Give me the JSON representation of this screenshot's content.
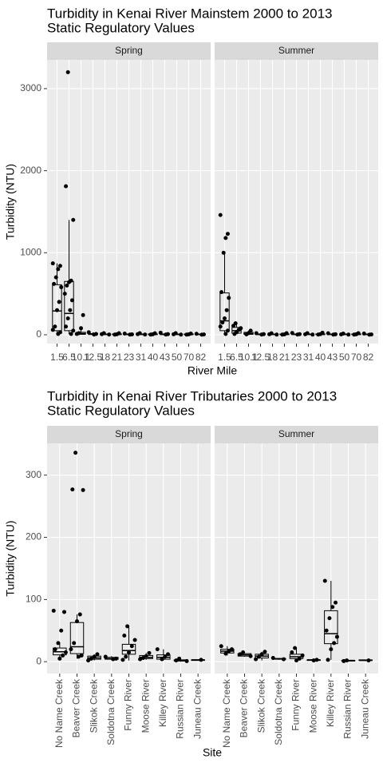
{
  "chart_data": [
    {
      "type": "box",
      "title": "Turbidity in Kenai River Mainstem  2000 to 2013",
      "subtitle": "Static Regulatory Values",
      "xlabel": "River Mile",
      "ylabel": "Turbidity (NTU)",
      "categories": [
        "1.5",
        "6.5",
        "10.1",
        "12.5",
        "18",
        "21",
        "23",
        "31",
        "40",
        "43",
        "50",
        "70",
        "82"
      ],
      "ylim": [
        -107,
        3350
      ],
      "yticks": [
        0,
        1000,
        2000,
        3000
      ],
      "grid": true,
      "facets": [
        {
          "name": "Spring",
          "boxes": [
            {
              "min": 5,
              "q1": 50,
              "median": 290,
              "q3": 610,
              "max": 870,
              "points": [
                870,
                840,
                800,
                700,
                620,
                580,
                400,
                300,
                100,
                60,
                30,
                10
              ]
            },
            {
              "min": 5,
              "q1": 50,
              "median": 260,
              "q3": 650,
              "max": 1400,
              "points": [
                3200,
                1810,
                1400,
                660,
                640,
                600,
                500,
                420,
                300,
                200,
                100,
                50,
                10
              ]
            },
            {
              "min": 2,
              "q1": 5,
              "median": 15,
              "q3": 30,
              "max": 80,
              "points": [
                240,
                80,
                20,
                10
              ]
            },
            {
              "min": 0,
              "q1": 3,
              "median": 8,
              "q3": 15,
              "max": 30,
              "points": [
                30,
                10,
                3
              ]
            },
            {
              "min": 0,
              "q1": 2,
              "median": 5,
              "q3": 10,
              "max": 20,
              "points": [
                20,
                8,
                3
              ]
            },
            {
              "min": 0,
              "q1": 2,
              "median": 5,
              "q3": 10,
              "max": 20,
              "points": [
                18,
                6,
                2
              ]
            },
            {
              "min": 0,
              "q1": 2,
              "median": 5,
              "q3": 10,
              "max": 20,
              "points": [
                15,
                5,
                2
              ]
            },
            {
              "min": 0,
              "q1": 2,
              "median": 5,
              "q3": 10,
              "max": 20,
              "points": [
                20,
                8,
                3
              ]
            },
            {
              "min": 0,
              "q1": 2,
              "median": 5,
              "q3": 10,
              "max": 20,
              "points": [
                18,
                6,
                2
              ]
            },
            {
              "min": 0,
              "q1": 2,
              "median": 5,
              "q3": 10,
              "max": 20,
              "points": [
                25,
                8,
                3
              ]
            },
            {
              "min": 0,
              "q1": 2,
              "median": 5,
              "q3": 10,
              "max": 20,
              "points": [
                20,
                6,
                2
              ]
            },
            {
              "min": 0,
              "q1": 2,
              "median": 5,
              "q3": 10,
              "max": 20,
              "points": [
                15,
                5,
                2
              ]
            },
            {
              "min": 0,
              "q1": 2,
              "median": 5,
              "q3": 10,
              "max": 20,
              "points": [
                12,
                4,
                1
              ]
            }
          ]
        },
        {
          "name": "Summer",
          "boxes": [
            {
              "min": 10,
              "q1": 50,
              "median": 170,
              "q3": 510,
              "max": 1000,
              "points": [
                1460,
                1230,
                1180,
                1000,
                520,
                450,
                300,
                200,
                150,
                100,
                50,
                10
              ]
            },
            {
              "min": 10,
              "q1": 20,
              "median": 50,
              "q3": 90,
              "max": 140,
              "points": [
                140,
                110,
                80,
                60,
                30,
                10
              ]
            },
            {
              "min": 2,
              "q1": 5,
              "median": 15,
              "q3": 30,
              "max": 50,
              "points": [
                50,
                20,
                5
              ]
            },
            {
              "min": 0,
              "q1": 2,
              "median": 5,
              "q3": 10,
              "max": 20,
              "points": [
                20,
                8,
                3
              ]
            },
            {
              "min": 0,
              "q1": 2,
              "median": 5,
              "q3": 10,
              "max": 20,
              "points": [
                18,
                6,
                2
              ]
            },
            {
              "min": 0,
              "q1": 2,
              "median": 5,
              "q3": 10,
              "max": 20,
              "points": [
                20,
                5,
                2
              ]
            },
            {
              "min": 0,
              "q1": 2,
              "median": 5,
              "q3": 10,
              "max": 20,
              "points": [
                22,
                8,
                3
              ]
            },
            {
              "min": 0,
              "q1": 2,
              "median": 5,
              "q3": 10,
              "max": 20,
              "points": [
                20,
                6,
                2
              ]
            },
            {
              "min": 0,
              "q1": 2,
              "median": 5,
              "q3": 10,
              "max": 20,
              "points": [
                25,
                8,
                3
              ]
            },
            {
              "min": 0,
              "q1": 2,
              "median": 5,
              "q3": 10,
              "max": 20,
              "points": [
                18,
                6,
                2
              ]
            },
            {
              "min": 0,
              "q1": 2,
              "median": 5,
              "q3": 10,
              "max": 20,
              "points": [
                15,
                5,
                2
              ]
            },
            {
              "min": 0,
              "q1": 2,
              "median": 5,
              "q3": 10,
              "max": 20,
              "points": [
                20,
                6,
                2
              ]
            },
            {
              "min": 0,
              "q1": 2,
              "median": 5,
              "q3": 10,
              "max": 20,
              "points": [
                15,
                4,
                1
              ]
            }
          ]
        }
      ]
    },
    {
      "type": "box",
      "title": "Turbidity in Kenai River Tributaries  2000 to 2013",
      "subtitle": "Static Regulatory Values",
      "xlabel": "Site",
      "ylabel": "Turbidity (NTU)",
      "categories": [
        "No Name Creek",
        "Beaver Creek",
        "Slikok Creek",
        "Soldotna Creek",
        "Funny River",
        "Moose River",
        "Killey River",
        "Russian River",
        "Juneau Creek"
      ],
      "ylim": [
        -19,
        351
      ],
      "yticks": [
        0,
        100,
        200,
        300
      ],
      "grid": true,
      "facets": [
        {
          "name": "Spring",
          "boxes": [
            {
              "min": 3,
              "q1": 11,
              "median": 16,
              "q3": 22,
              "max": 30,
              "points": [
                82,
                80,
                50,
                30,
                20,
                15,
                10,
                5
              ]
            },
            {
              "min": 5,
              "q1": 13,
              "median": 24,
              "q3": 63,
              "max": 76,
              "points": [
                336,
                277,
                276,
                76,
                65,
                30,
                20,
                10,
                8
              ]
            },
            {
              "min": 2,
              "q1": 4,
              "median": 6,
              "q3": 9,
              "max": 12,
              "points": [
                12,
                8,
                5,
                2
              ]
            },
            {
              "min": 3,
              "q1": 4,
              "median": 5,
              "q3": 7,
              "max": 9,
              "points": [
                8,
                5,
                4
              ]
            },
            {
              "min": 2,
              "q1": 12,
              "median": 18,
              "q3": 28,
              "max": 57,
              "points": [
                57,
                42,
                35,
                25,
                15,
                8,
                3
              ]
            },
            {
              "min": 3,
              "q1": 5,
              "median": 7,
              "q3": 10,
              "max": 14,
              "points": [
                14,
                9,
                6,
                4
              ]
            },
            {
              "min": 2,
              "q1": 4,
              "median": 7,
              "q3": 11,
              "max": 20,
              "points": [
                20,
                12,
                8,
                4
              ]
            },
            {
              "min": 0,
              "q1": 1,
              "median": 2,
              "q3": 3,
              "max": 4,
              "points": [
                5,
                2,
                1
              ]
            },
            {
              "min": 2,
              "q1": 2,
              "median": 3,
              "q3": 3,
              "max": 3,
              "points": [
                3
              ]
            }
          ]
        },
        {
          "name": "Summer",
          "boxes": [
            {
              "min": 10,
              "q1": 14,
              "median": 17,
              "q3": 20,
              "max": 25,
              "points": [
                25,
                20,
                17,
                13
              ]
            },
            {
              "min": 8,
              "q1": 9,
              "median": 11,
              "q3": 13,
              "max": 15,
              "points": [
                15,
                12,
                9
              ]
            },
            {
              "min": 2,
              "q1": 6,
              "median": 9,
              "q3": 12,
              "max": 16,
              "points": [
                16,
                12,
                8,
                4
              ]
            },
            {
              "min": 3,
              "q1": 4,
              "median": 5,
              "q3": 5,
              "max": 6,
              "points": [
                6,
                4
              ]
            },
            {
              "min": 2,
              "q1": 5,
              "median": 8,
              "q3": 12,
              "max": 22,
              "points": [
                22,
                15,
                10,
                5,
                2
              ]
            },
            {
              "min": 1,
              "q1": 2,
              "median": 3,
              "q3": 3,
              "max": 4,
              "points": [
                3,
                2
              ]
            },
            {
              "min": 3,
              "q1": 29,
              "median": 45,
              "q3": 82,
              "max": 130,
              "points": [
                130,
                95,
                88,
                70,
                50,
                40,
                30,
                20,
                3
              ]
            },
            {
              "min": 0,
              "q1": 1,
              "median": 2,
              "q3": 2,
              "max": 3,
              "points": [
                2,
                1
              ]
            },
            {
              "min": 1,
              "q1": 2,
              "median": 2,
              "q3": 3,
              "max": 3,
              "points": [
                2
              ]
            }
          ]
        }
      ]
    }
  ]
}
